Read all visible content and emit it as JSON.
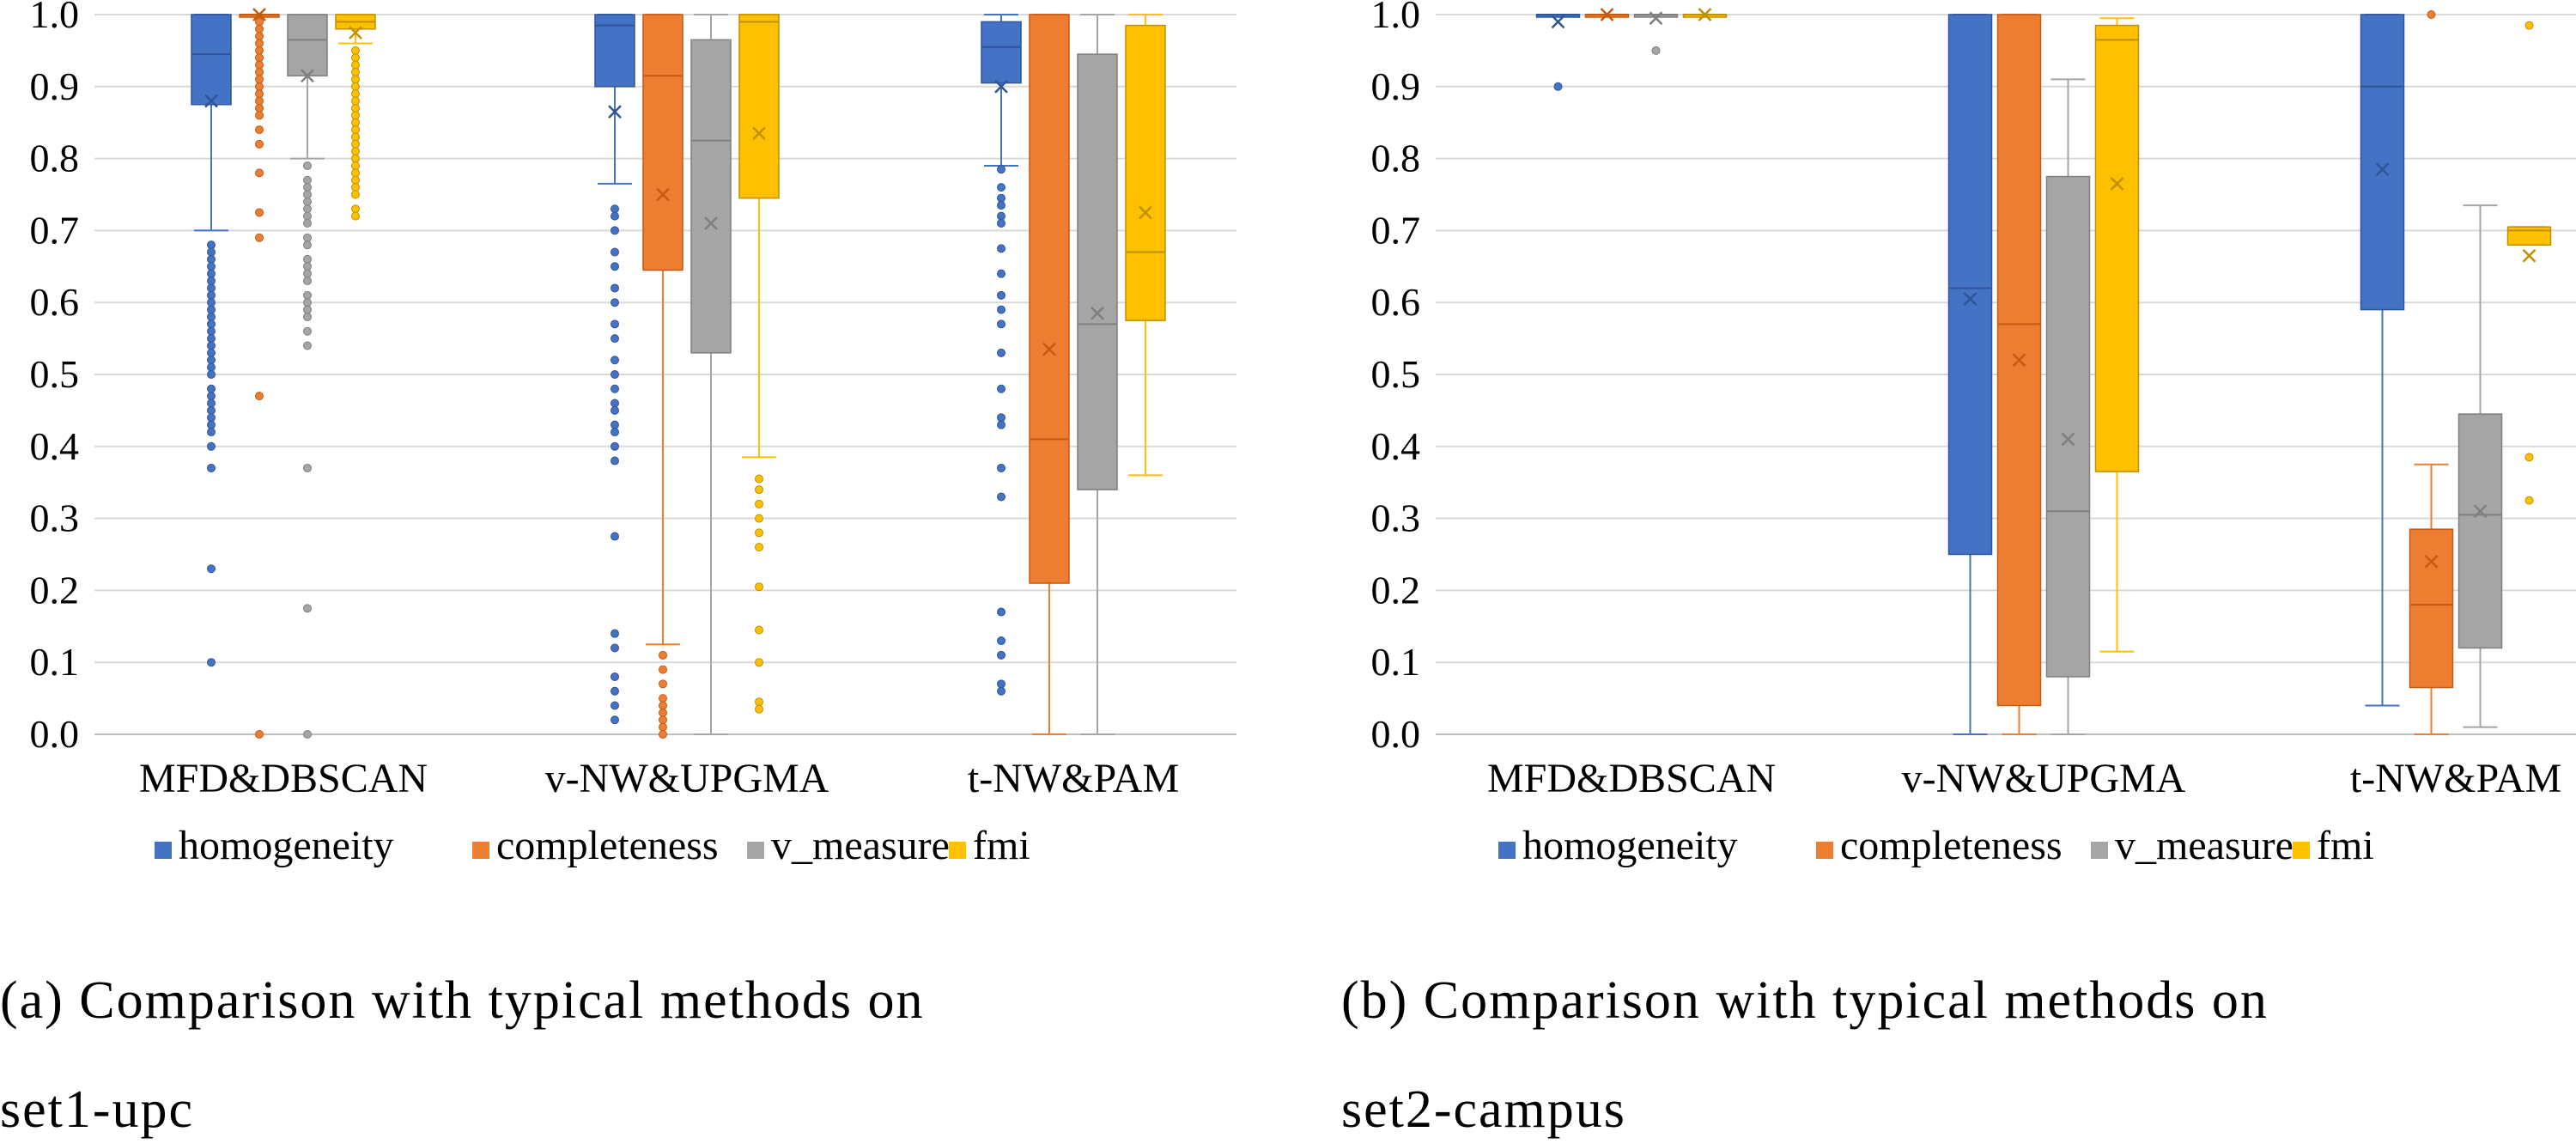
{
  "legend": [
    {
      "label": "homogeneity",
      "color": "#4472C4"
    },
    {
      "label": "completeness",
      "color": "#ED7D31"
    },
    {
      "label": "v_measure",
      "color": "#A5A5A5"
    },
    {
      "label": "fmi",
      "color": "#FFC000"
    }
  ],
  "charts": [
    {
      "caption_line1": "(a) Comparison with typical methods on",
      "caption_line2": "set1-upc"
    },
    {
      "caption_line1": "(b) Comparison with typical methods on",
      "caption_line2": "set2-campus"
    }
  ],
  "chart_data": [
    {
      "type": "box",
      "categories": [
        "MFD&DBSCAN",
        "v-NW&UPGMA",
        "t-NW&PAM"
      ],
      "series_names": [
        "homogeneity",
        "completeness",
        "v_measure",
        "fmi"
      ],
      "ylim": [
        0,
        1
      ],
      "yticks": [
        "0.0",
        "0.1",
        "0.2",
        "0.3",
        "0.4",
        "0.5",
        "0.6",
        "0.7",
        "0.8",
        "0.9",
        "1.0"
      ],
      "grid": true,
      "legend_position": "bottom",
      "boxes": [
        [
          {
            "min": 0.7,
            "q1": 0.875,
            "median": 0.945,
            "q3": 1.0,
            "max": 1.0,
            "mean": 0.88,
            "outliers": [
              0.68,
              0.67,
              0.66,
              0.65,
              0.64,
              0.63,
              0.62,
              0.61,
              0.6,
              0.59,
              0.58,
              0.57,
              0.56,
              0.55,
              0.54,
              0.53,
              0.52,
              0.51,
              0.5,
              0.48,
              0.47,
              0.46,
              0.45,
              0.44,
              0.43,
              0.42,
              0.4,
              0.37,
              0.23,
              0.1
            ]
          },
          {
            "min": 1.0,
            "q1": 1.0,
            "median": 1.0,
            "q3": 1.0,
            "max": 1.0,
            "mean": 1.0,
            "outliers": [
              0.99,
              0.98,
              0.97,
              0.96,
              0.95,
              0.94,
              0.93,
              0.92,
              0.91,
              0.9,
              0.89,
              0.88,
              0.87,
              0.86,
              0.84,
              0.82,
              0.78,
              0.725,
              0.69,
              0.47,
              0.0
            ]
          },
          {
            "min": 0.8,
            "q1": 0.915,
            "median": 0.965,
            "q3": 1.0,
            "max": 1.0,
            "mean": 0.915,
            "outliers": [
              0.79,
              0.77,
              0.76,
              0.75,
              0.74,
              0.73,
              0.72,
              0.71,
              0.69,
              0.68,
              0.66,
              0.65,
              0.64,
              0.63,
              0.61,
              0.6,
              0.59,
              0.58,
              0.56,
              0.54,
              0.37,
              0.175,
              0.0
            ]
          },
          {
            "min": 0.96,
            "q1": 0.98,
            "median": 0.99,
            "q3": 1.0,
            "max": 1.0,
            "mean": 0.975,
            "outliers": [
              0.95,
              0.94,
              0.93,
              0.92,
              0.91,
              0.9,
              0.89,
              0.88,
              0.87,
              0.86,
              0.85,
              0.84,
              0.83,
              0.82,
              0.81,
              0.8,
              0.79,
              0.78,
              0.77,
              0.76,
              0.75,
              0.73,
              0.72
            ]
          }
        ],
        [
          {
            "min": 0.765,
            "q1": 0.9,
            "median": 0.985,
            "q3": 1.0,
            "max": 1.0,
            "mean": 0.865,
            "outliers": [
              0.73,
              0.72,
              0.7,
              0.67,
              0.65,
              0.62,
              0.6,
              0.57,
              0.55,
              0.52,
              0.5,
              0.48,
              0.46,
              0.45,
              0.43,
              0.42,
              0.4,
              0.38,
              0.275,
              0.14,
              0.12,
              0.08,
              0.06,
              0.04,
              0.02
            ]
          },
          {
            "min": 0.125,
            "q1": 0.645,
            "median": 0.915,
            "q3": 1.0,
            "max": 1.0,
            "mean": 0.75,
            "outliers": [
              0.11,
              0.09,
              0.07,
              0.05,
              0.04,
              0.03,
              0.02,
              0.01,
              0.0
            ]
          },
          {
            "min": 0.0,
            "q1": 0.53,
            "median": 0.825,
            "q3": 0.965,
            "max": 1.0,
            "mean": 0.71,
            "outliers": []
          },
          {
            "min": 0.385,
            "q1": 0.745,
            "median": 0.99,
            "q3": 1.0,
            "max": 1.0,
            "mean": 0.835,
            "outliers": [
              0.355,
              0.34,
              0.32,
              0.3,
              0.28,
              0.26,
              0.205,
              0.145,
              0.1,
              0.045,
              0.035
            ]
          }
        ],
        [
          {
            "min": 0.79,
            "q1": 0.905,
            "median": 0.955,
            "q3": 0.99,
            "max": 1.0,
            "mean": 0.9,
            "outliers": [
              0.785,
              0.76,
              0.745,
              0.735,
              0.72,
              0.71,
              0.675,
              0.64,
              0.61,
              0.59,
              0.57,
              0.53,
              0.48,
              0.44,
              0.43,
              0.37,
              0.33,
              0.17,
              0.13,
              0.11,
              0.07,
              0.06
            ]
          },
          {
            "min": 0.0,
            "q1": 0.21,
            "median": 0.41,
            "q3": 1.0,
            "max": 1.0,
            "mean": 0.535,
            "outliers": []
          },
          {
            "min": 0.0,
            "q1": 0.34,
            "median": 0.57,
            "q3": 0.945,
            "max": 1.0,
            "mean": 0.585,
            "outliers": []
          },
          {
            "min": 0.36,
            "q1": 0.575,
            "median": 0.67,
            "q3": 0.985,
            "max": 1.0,
            "mean": 0.725,
            "outliers": []
          }
        ]
      ]
    },
    {
      "type": "box",
      "categories": [
        "MFD&DBSCAN",
        "v-NW&UPGMA",
        "t-NW&PAM"
      ],
      "series_names": [
        "homogeneity",
        "completeness",
        "v_measure",
        "fmi"
      ],
      "ylim": [
        0,
        1
      ],
      "yticks": [
        "0.0",
        "0.1",
        "0.2",
        "0.3",
        "0.4",
        "0.5",
        "0.6",
        "0.7",
        "0.8",
        "0.9",
        "1.0"
      ],
      "grid": true,
      "legend_position": "bottom",
      "boxes": [
        [
          {
            "min": 1.0,
            "q1": 1.0,
            "median": 1.0,
            "q3": 1.0,
            "max": 1.0,
            "mean": 0.99,
            "outliers": [
              0.9
            ]
          },
          {
            "min": 1.0,
            "q1": 1.0,
            "median": 1.0,
            "q3": 1.0,
            "max": 1.0,
            "mean": 1.0,
            "outliers": []
          },
          {
            "min": 1.0,
            "q1": 1.0,
            "median": 1.0,
            "q3": 1.0,
            "max": 1.0,
            "mean": 0.995,
            "outliers": [
              0.95
            ]
          },
          {
            "min": 1.0,
            "q1": 1.0,
            "median": 1.0,
            "q3": 1.0,
            "max": 1.0,
            "mean": 1.0,
            "outliers": []
          }
        ],
        [
          {
            "min": 0.0,
            "q1": 0.25,
            "median": 0.62,
            "q3": 1.0,
            "max": 1.0,
            "mean": 0.605,
            "outliers": []
          },
          {
            "min": 0.0,
            "q1": 0.04,
            "median": 0.57,
            "q3": 1.0,
            "max": 1.0,
            "mean": 0.52,
            "outliers": []
          },
          {
            "min": 0.0,
            "q1": 0.08,
            "median": 0.31,
            "q3": 0.775,
            "max": 0.91,
            "mean": 0.41,
            "outliers": []
          },
          {
            "min": 0.115,
            "q1": 0.365,
            "median": 0.965,
            "q3": 0.985,
            "max": 0.995,
            "mean": 0.765,
            "outliers": []
          }
        ],
        [
          {
            "min": 0.04,
            "q1": 0.59,
            "median": 0.9,
            "q3": 1.0,
            "max": 1.0,
            "mean": 0.785,
            "outliers": []
          },
          {
            "min": 0.0,
            "q1": 0.065,
            "median": 0.18,
            "q3": 0.285,
            "max": 0.375,
            "mean": 0.24,
            "outliers": [
              1.0
            ]
          },
          {
            "min": 0.01,
            "q1": 0.12,
            "median": 0.305,
            "q3": 0.445,
            "max": 0.735,
            "mean": 0.31,
            "outliers": []
          },
          {
            "min": 0.68,
            "q1": 0.68,
            "median": 0.7,
            "q3": 0.705,
            "max": 0.705,
            "mean": 0.665,
            "outliers": [
              0.985,
              0.385,
              0.325
            ]
          }
        ]
      ]
    }
  ]
}
